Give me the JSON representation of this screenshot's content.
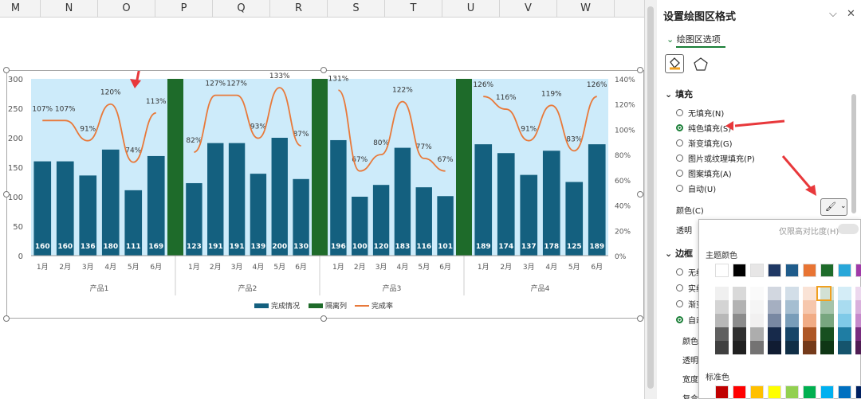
{
  "columns": [
    "M",
    "N",
    "O",
    "P",
    "Q",
    "R",
    "S",
    "T",
    "U",
    "V",
    "W"
  ],
  "chart": {
    "left_ticks": [
      "300",
      "250",
      "200",
      "150",
      "100",
      "50",
      "0"
    ],
    "right_ticks": [
      "140%",
      "120%",
      "100%",
      "80%",
      "60%",
      "40%",
      "20%",
      "0%"
    ],
    "months": [
      "1月",
      "2月",
      "3月",
      "4月",
      "5月",
      "6月"
    ],
    "groups": [
      {
        "name": "产品1",
        "values": [
          160,
          160,
          136,
          180,
          111,
          169
        ],
        "rates": [
          "107%",
          "107%",
          "91%",
          "120%",
          "74%",
          "113%"
        ]
      },
      {
        "name": "产品2",
        "values": [
          123,
          191,
          191,
          139,
          200,
          130
        ],
        "rates": [
          "82%",
          "127%",
          "127%",
          "93%",
          "133%",
          "87%"
        ]
      },
      {
        "name": "产品3",
        "values": [
          196,
          100,
          120,
          183,
          116,
          101
        ],
        "rates": [
          "131%",
          "67%",
          "80%",
          "122%",
          "77%",
          "67%"
        ]
      },
      {
        "name": "产品4",
        "values": [
          189,
          174,
          137,
          178,
          125,
          189
        ],
        "rates": [
          "126%",
          "116%",
          "91%",
          "119%",
          "83%",
          "126%"
        ]
      }
    ],
    "legend": {
      "bar": "完成情况",
      "sep": "隔离列",
      "line": "完成率"
    },
    "colors": {
      "bar": "#14607f",
      "sep": "#1e6b2a",
      "line": "#e8793a",
      "plot": "#cdebfa",
      "arrow": "#e8383b"
    }
  },
  "pane": {
    "title": "设置绘图区格式",
    "subtitle": "绘图区选项",
    "fill_section": "填充",
    "fill_options": [
      "无填充(N)",
      "纯色填充(S)",
      "渐变填充(G)",
      "图片或纹理填充(P)",
      "图案填充(A)",
      "自动(U)"
    ],
    "selected_fill": "纯色填充(S)",
    "color_label": "颜色(C)",
    "transparency_label": "透明",
    "border_section": "边框",
    "border_options": [
      "无线",
      "实线",
      "渐变",
      "自动"
    ],
    "border_labels": [
      "颜色",
      "透明",
      "宽度",
      "复合"
    ],
    "palette": {
      "lock_label": "仅限高对比度(H)",
      "theme_label": "主题颜色",
      "standard_label": "标准色",
      "theme_top": [
        "#ffffff",
        "#000000",
        "#e7e6e6",
        "#1f3864",
        "#1f5c8b",
        "#e87433",
        "#1e6b2a",
        "#29a7d9",
        "#a03aa8",
        "#4ea72e"
      ],
      "standard": [
        "#c00000",
        "#ff0000",
        "#ffc000",
        "#ffff00",
        "#92d050",
        "#00b050",
        "#00b0f0",
        "#0070c0",
        "#002060",
        "#7030a0"
      ]
    }
  }
}
